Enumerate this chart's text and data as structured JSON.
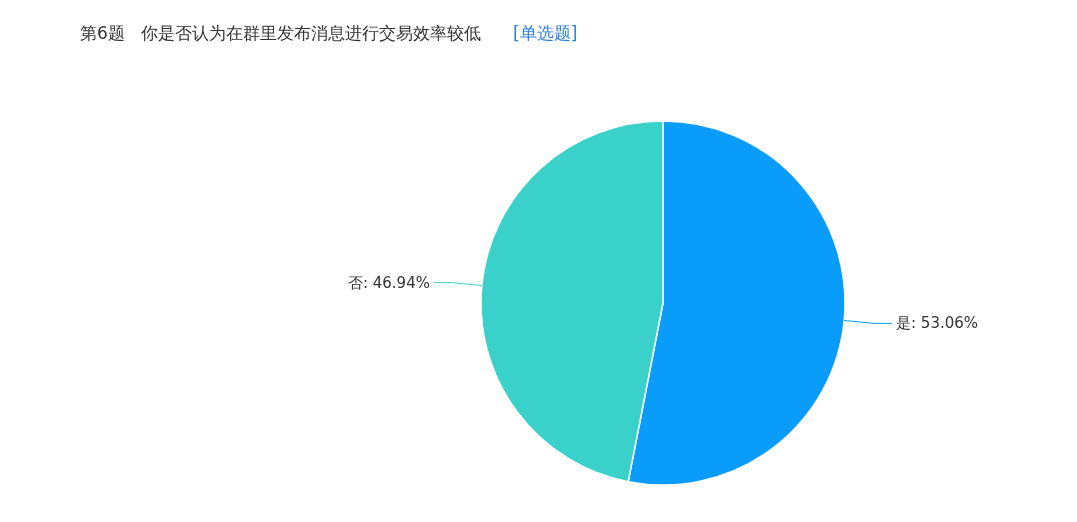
{
  "chart_data": {
    "type": "pie",
    "title": "第6题   你是否认为在群里发布消息进行交易效率较低",
    "subtitle": "[单选题]",
    "categories": [
      "是",
      "否"
    ],
    "values": [
      53.06,
      46.94
    ],
    "value_labels": [
      "53.06%",
      "46.94%"
    ],
    "colors": [
      "#0a9cfb",
      "#3bd1cb"
    ],
    "legend": false
  }
}
